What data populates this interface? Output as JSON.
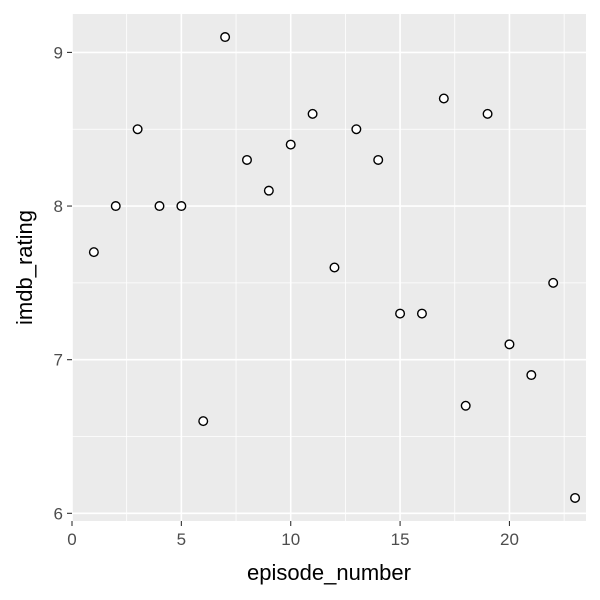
{
  "chart_data": {
    "type": "scatter",
    "xlabel": "episode_number",
    "ylabel": "imdb_rating",
    "xlim": [
      0,
      23.5
    ],
    "ylim": [
      5.95,
      9.25
    ],
    "x_ticks": [
      0,
      5,
      10,
      15,
      20
    ],
    "y_ticks": [
      6,
      7,
      8,
      9
    ],
    "grid": true,
    "points": [
      {
        "x": 1,
        "y": 7.7
      },
      {
        "x": 2,
        "y": 8.0
      },
      {
        "x": 3,
        "y": 8.5
      },
      {
        "x": 4,
        "y": 8.0
      },
      {
        "x": 5,
        "y": 8.0
      },
      {
        "x": 6,
        "y": 6.6
      },
      {
        "x": 7,
        "y": 9.1
      },
      {
        "x": 8,
        "y": 8.3
      },
      {
        "x": 9,
        "y": 8.1
      },
      {
        "x": 10,
        "y": 8.4
      },
      {
        "x": 11,
        "y": 8.6
      },
      {
        "x": 12,
        "y": 7.6
      },
      {
        "x": 13,
        "y": 8.5
      },
      {
        "x": 14,
        "y": 8.3
      },
      {
        "x": 15,
        "y": 7.3
      },
      {
        "x": 16,
        "y": 7.3
      },
      {
        "x": 17,
        "y": 8.7
      },
      {
        "x": 18,
        "y": 6.7
      },
      {
        "x": 19,
        "y": 8.6
      },
      {
        "x": 20,
        "y": 7.1
      },
      {
        "x": 21,
        "y": 6.9
      },
      {
        "x": 22,
        "y": 7.5
      },
      {
        "x": 23,
        "y": 6.1
      }
    ],
    "colors": {
      "panel_background": "#ebebeb",
      "major_grid": "#ffffff",
      "point_stroke": "#000000",
      "point_fill": "#ffffff",
      "tick_text": "#4d4d4d",
      "axis_title": "#000000"
    }
  }
}
